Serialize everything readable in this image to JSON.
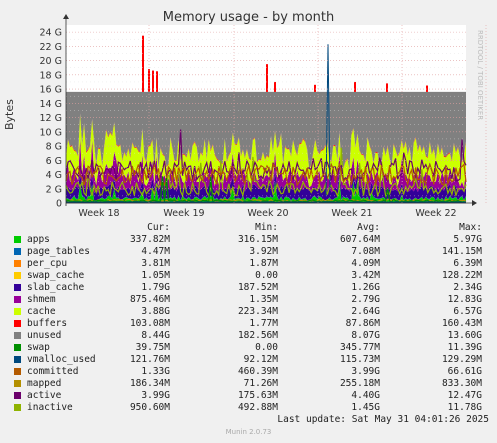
{
  "chart_data": {
    "type": "area",
    "title": "Memory usage - by month",
    "ylabel": "Bytes",
    "y_ticks": [
      "0",
      "2 G",
      "4 G",
      "6 G",
      "8 G",
      "10 G",
      "12 G",
      "14 G",
      "16 G",
      "18 G",
      "20 G",
      "22 G",
      "24 G"
    ],
    "ylim": [
      0,
      25
    ],
    "x_ticks": [
      "Week 18",
      "Week 19",
      "Week 20",
      "Week 21",
      "Week 22"
    ],
    "grid": true,
    "series": [
      {
        "name": "apps",
        "color": "#00cc00",
        "cur": "337.82M",
        "min": "316.15M",
        "avg": "607.64M",
        "max": "5.97G"
      },
      {
        "name": "page_tables",
        "color": "#0066b3",
        "cur": "4.47M",
        "min": "3.92M",
        "avg": "7.08M",
        "max": "141.15M"
      },
      {
        "name": "per_cpu",
        "color": "#ff8000",
        "cur": "3.81M",
        "min": "1.87M",
        "avg": "4.09M",
        "max": "6.39M"
      },
      {
        "name": "swap_cache",
        "color": "#ffcc00",
        "cur": "1.05M",
        "min": "0.00",
        "avg": "3.42M",
        "max": "128.22M"
      },
      {
        "name": "slab_cache",
        "color": "#330099",
        "cur": "1.79G",
        "min": "187.52M",
        "avg": "1.26G",
        "max": "2.34G"
      },
      {
        "name": "shmem",
        "color": "#990099",
        "cur": "875.46M",
        "min": "1.35M",
        "avg": "2.79G",
        "max": "12.83G"
      },
      {
        "name": "cache",
        "color": "#ccff00",
        "cur": "3.88G",
        "min": "223.34M",
        "avg": "2.64G",
        "max": "6.57G"
      },
      {
        "name": "buffers",
        "color": "#ff0000",
        "cur": "103.08M",
        "min": "1.77M",
        "avg": "87.86M",
        "max": "160.43M"
      },
      {
        "name": "unused",
        "color": "#808080",
        "cur": "8.44G",
        "min": "182.56M",
        "avg": "8.07G",
        "max": "13.60G"
      },
      {
        "name": "swap",
        "color": "#008f00",
        "cur": "39.75M",
        "min": "0.00",
        "avg": "345.77M",
        "max": "11.39G"
      },
      {
        "name": "vmalloc_used",
        "color": "#00487d",
        "cur": "121.76M",
        "min": "92.12M",
        "avg": "115.73M",
        "max": "129.29M"
      },
      {
        "name": "committed",
        "color": "#b35a00",
        "cur": "1.33G",
        "min": "460.39M",
        "avg": "3.99G",
        "max": "66.61G"
      },
      {
        "name": "mapped",
        "color": "#b38f00",
        "cur": "186.34M",
        "min": "71.26M",
        "avg": "255.18M",
        "max": "833.30M"
      },
      {
        "name": "active",
        "color": "#6b006b",
        "cur": "3.99G",
        "min": "175.63M",
        "avg": "4.40G",
        "max": "12.47G"
      },
      {
        "name": "inactive",
        "color": "#8fb300",
        "cur": "950.60M",
        "min": "492.88M",
        "avg": "1.45G",
        "max": "11.78G"
      }
    ]
  },
  "legend_headers": {
    "cur": "Cur:",
    "min": "Min:",
    "avg": "Avg:",
    "max": "Max:"
  },
  "last_update": "Last update: Sat May 31 04:01:26 2025",
  "footer": "Munin 2.0.73",
  "side_label": "RRDTOOL / TOBI OETIKER"
}
